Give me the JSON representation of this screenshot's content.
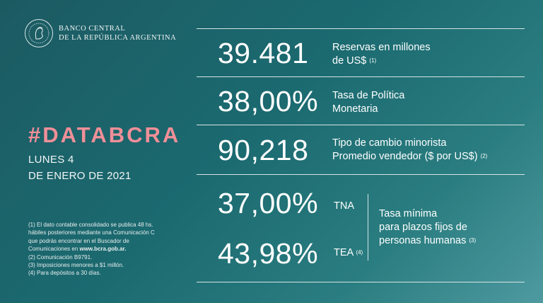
{
  "brand": {
    "line1": "BANCO CENTRAL",
    "line2": "DE LA REPÚBLICA ARGENTINA"
  },
  "title": "#DATABCRA",
  "date": {
    "line1": "LUNES 4",
    "line2": "DE ENERO DE 2021"
  },
  "metrics": [
    {
      "value": "39.481",
      "label_line1": "Reservas en millones",
      "label_line2": "de US$",
      "note": "(1)"
    },
    {
      "value": "38,00%",
      "label_line1": "Tasa de Política",
      "label_line2": "Monetaria",
      "note": ""
    },
    {
      "value": "90,218",
      "label_line1": "Tipo de cambio minorista",
      "label_line2": "Promedio vendedor  ($ por US$)",
      "note": "(2)"
    }
  ],
  "rates": [
    {
      "value": "37,00%",
      "tag": "TNA",
      "note": ""
    },
    {
      "value": "43,98%",
      "tag": "TEA",
      "note": "(4)"
    }
  ],
  "rate_label": {
    "line1": "Tasa mínima",
    "line2": "para plazos fijos de",
    "line3": "personas humanas",
    "note": "(3)"
  },
  "notes": {
    "n1_a": "(1) El dato contable consolidado se publica 48 hs.",
    "n1_b": "hábiles posteriores mediante una Comunicación C",
    "n1_c": "que podrás encontrar en el Buscador de",
    "n1_d_pre": "Comunicaciones en ",
    "n1_d_link": "www.bcra.gob.ar.",
    "n2": "(2) Comunicación B9791.",
    "n3": "(3) Imposiciones menores a $1 millón.",
    "n4": "(4) Para depósitos a 30 días."
  }
}
